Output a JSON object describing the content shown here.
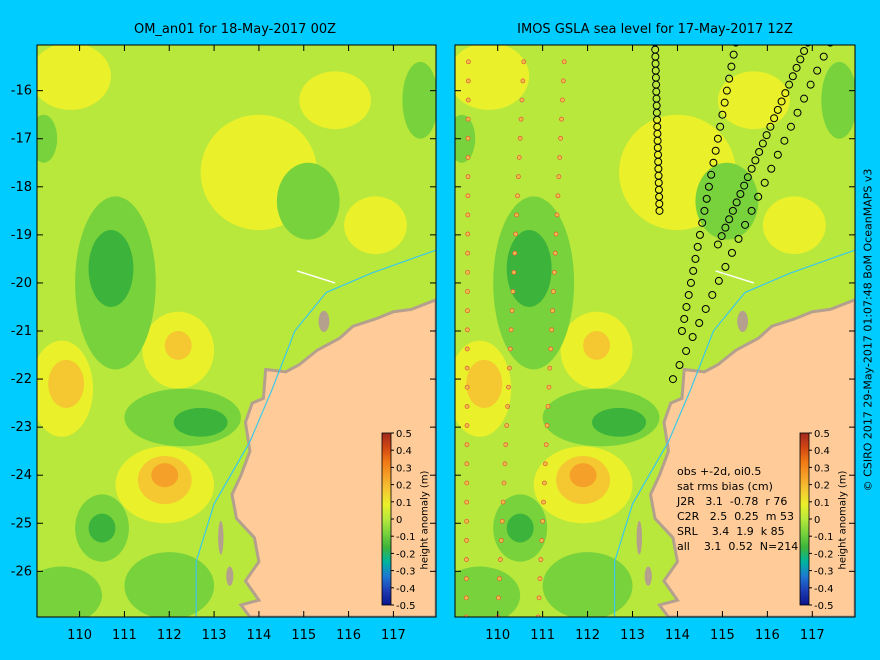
{
  "left_panel": {
    "title": "OM_an01 for 18-May-2017 00Z",
    "colorbar_label": "height anomaly (m)"
  },
  "right_panel": {
    "title": "IMOS GSLA sea level  for 17-May-2017 12Z",
    "colorbar_label": "height anomaly (m)",
    "stats": {
      "line1": "obs +-2d, oi0.5",
      "line2": "sat rms bias (cm)",
      "rows": [
        "J2R   3.1  -0.78  r 76",
        "C2R   2.5  0.25  m 53",
        "SRL    3.4  1.9  k 85",
        "all    3.1  0.52  N=214"
      ]
    }
  },
  "credit": "© CSIRO 2017  29-May-2017 01:07:48 BoM OceanMAPS v3",
  "axes": {
    "lon_ticks": [
      "110",
      "111",
      "112",
      "113",
      "114",
      "115",
      "116",
      "117"
    ],
    "lat_ticks": [
      "-16",
      "-17",
      "-18",
      "-19",
      "-20",
      "-21",
      "-22",
      "-23",
      "-24",
      "-25",
      "-26"
    ],
    "lon_range": [
      109.05,
      117.95
    ],
    "lat_range": [
      -26.95,
      -15.05
    ]
  },
  "colorbar": {
    "ticks": [
      "0.5",
      "0.4",
      "0.3",
      "0.2",
      "0.1",
      "0",
      "-0.1",
      "-0.2",
      "-0.3",
      "-0.4",
      "-0.5"
    ],
    "colors": [
      "#a0281e",
      "#d24614",
      "#f07814",
      "#f5a028",
      "#f5c832",
      "#eaf02a",
      "#b8e83c",
      "#78d23c",
      "#3cb43c",
      "#00b4a0",
      "#1e78d2",
      "#1e3cb4",
      "#0a148c"
    ]
  },
  "colors": {
    "background": "#00ccff",
    "land": "#ffcc99",
    "coast": "#b4a08c",
    "field_base": "#b8e83c"
  }
}
